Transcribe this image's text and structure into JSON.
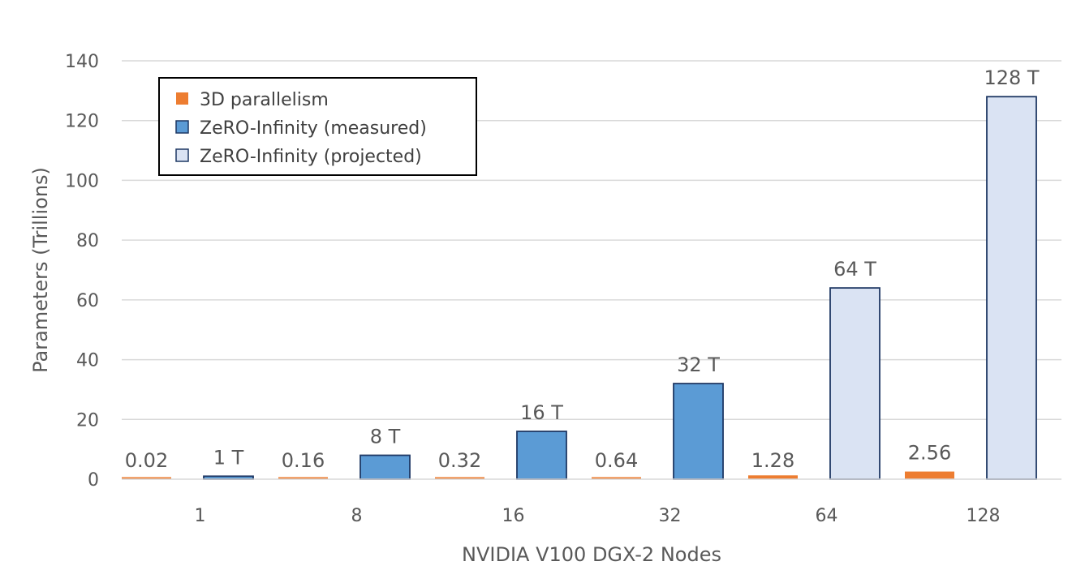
{
  "chart_data": {
    "type": "bar",
    "title": "",
    "xlabel": "NVIDIA V100 DGX-2 Nodes",
    "ylabel": "Parameters (Trillions)",
    "ylim": [
      0,
      140
    ],
    "yticks": [
      0,
      20,
      40,
      60,
      80,
      100,
      120,
      140
    ],
    "grid": true,
    "legend_position": "top-left",
    "categories": [
      "1",
      "8",
      "16",
      "32",
      "64",
      "128"
    ],
    "series": [
      {
        "name": "3D parallelism",
        "color": "#ED7D31",
        "values": [
          0.02,
          0.16,
          0.32,
          0.64,
          1.28,
          2.56
        ],
        "labels": [
          "0.02",
          "0.16",
          "0.32",
          "0.64",
          "1.28",
          "2.56"
        ]
      },
      {
        "name": "ZeRO-Infinity (measured)",
        "color": "#5B9BD5",
        "values": [
          1,
          8,
          16,
          32,
          null,
          null
        ],
        "labels": [
          "1 T",
          "8 T",
          "16 T",
          "32 T",
          "",
          ""
        ]
      },
      {
        "name": "ZeRO-Infinity (projected)",
        "color": "#DAE3F3",
        "values": [
          null,
          null,
          null,
          null,
          64,
          128
        ],
        "labels": [
          "",
          "",
          "",
          "",
          "64 T",
          "128 T"
        ]
      }
    ]
  }
}
